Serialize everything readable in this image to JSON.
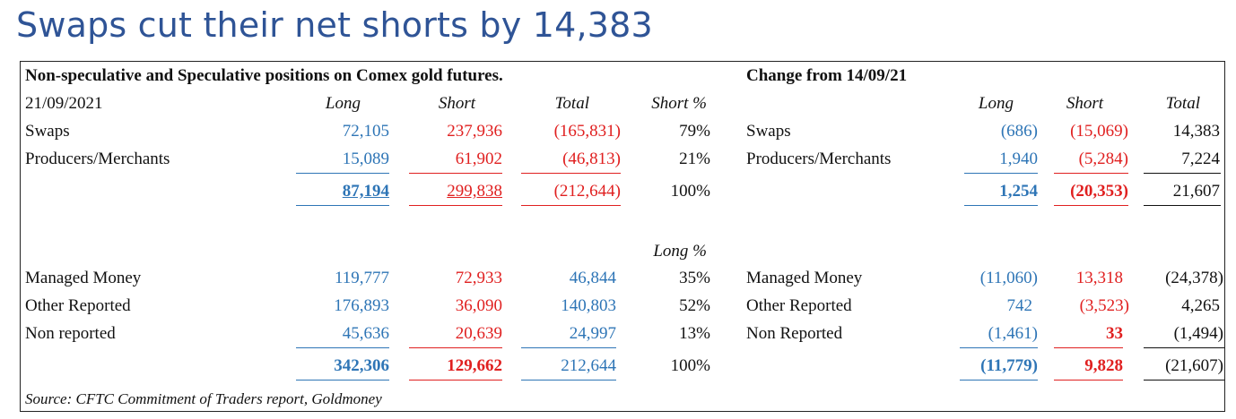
{
  "title": "Swaps cut their net shorts by 14,383",
  "left_header": "Non-speculative and Speculative positions on Comex gold futures.",
  "right_header": "Change from 14/09/21",
  "date": "21/09/2021",
  "col_long": "Long",
  "col_short": "Short",
  "col_total": "Total",
  "col_short_pct": "Short %",
  "col_long_pct": "Long %",
  "nonspec": [
    {
      "label": "Swaps",
      "long": "72,105",
      "short": "237,936",
      "total": "(165,831)",
      "pct": "79%"
    },
    {
      "label": "Producers/Merchants",
      "long": "15,089",
      "short": "61,902",
      "total": "(46,813)",
      "pct": "21%"
    }
  ],
  "nonspec_total": {
    "long": "87,194",
    "short": "299,838",
    "total": "(212,644)",
    "pct": "100%"
  },
  "spec": [
    {
      "label": "Managed Money",
      "long": "119,777",
      "short": "72,933",
      "total": "46,844",
      "pct": "35%"
    },
    {
      "label": "Other Reported",
      "long": "176,893",
      "short": "36,090",
      "total": "140,803",
      "pct": "52%"
    },
    {
      "label": "Non reported",
      "long": "45,636",
      "short": "20,639",
      "total": "24,997",
      "pct": "13%"
    }
  ],
  "spec_total": {
    "long": "342,306",
    "short": "129,662",
    "total": "212,644",
    "pct": "100%"
  },
  "change_nonspec": [
    {
      "label": "Swaps",
      "long": "(686)",
      "short": "(15,069)",
      "total": "14,383"
    },
    {
      "label": "Producers/Merchants",
      "long": "1,940",
      "short": "(5,284)",
      "total": "7,224"
    }
  ],
  "change_nonspec_total": {
    "long": "1,254",
    "short": "(20,353)",
    "total": "21,607"
  },
  "change_spec": [
    {
      "label": "Managed Money",
      "long": "(11,060)",
      "short": "13,318",
      "total": "(24,378)"
    },
    {
      "label": "Other Reported",
      "long": "742",
      "short": "(3,523)",
      "total": "4,265"
    },
    {
      "label": "Non Reported",
      "long": "(1,461)",
      "short": "33",
      "total": "(1,494)"
    }
  ],
  "change_spec_total": {
    "long": "(11,779)",
    "short": "9,828",
    "total": "(21,607)"
  },
  "source": "Source: CFTC Commitment of Traders report, Goldmoney",
  "colors": {
    "title": "#2F5496",
    "long": "#2E75B6",
    "short": "#E02020",
    "text": "#111111"
  }
}
